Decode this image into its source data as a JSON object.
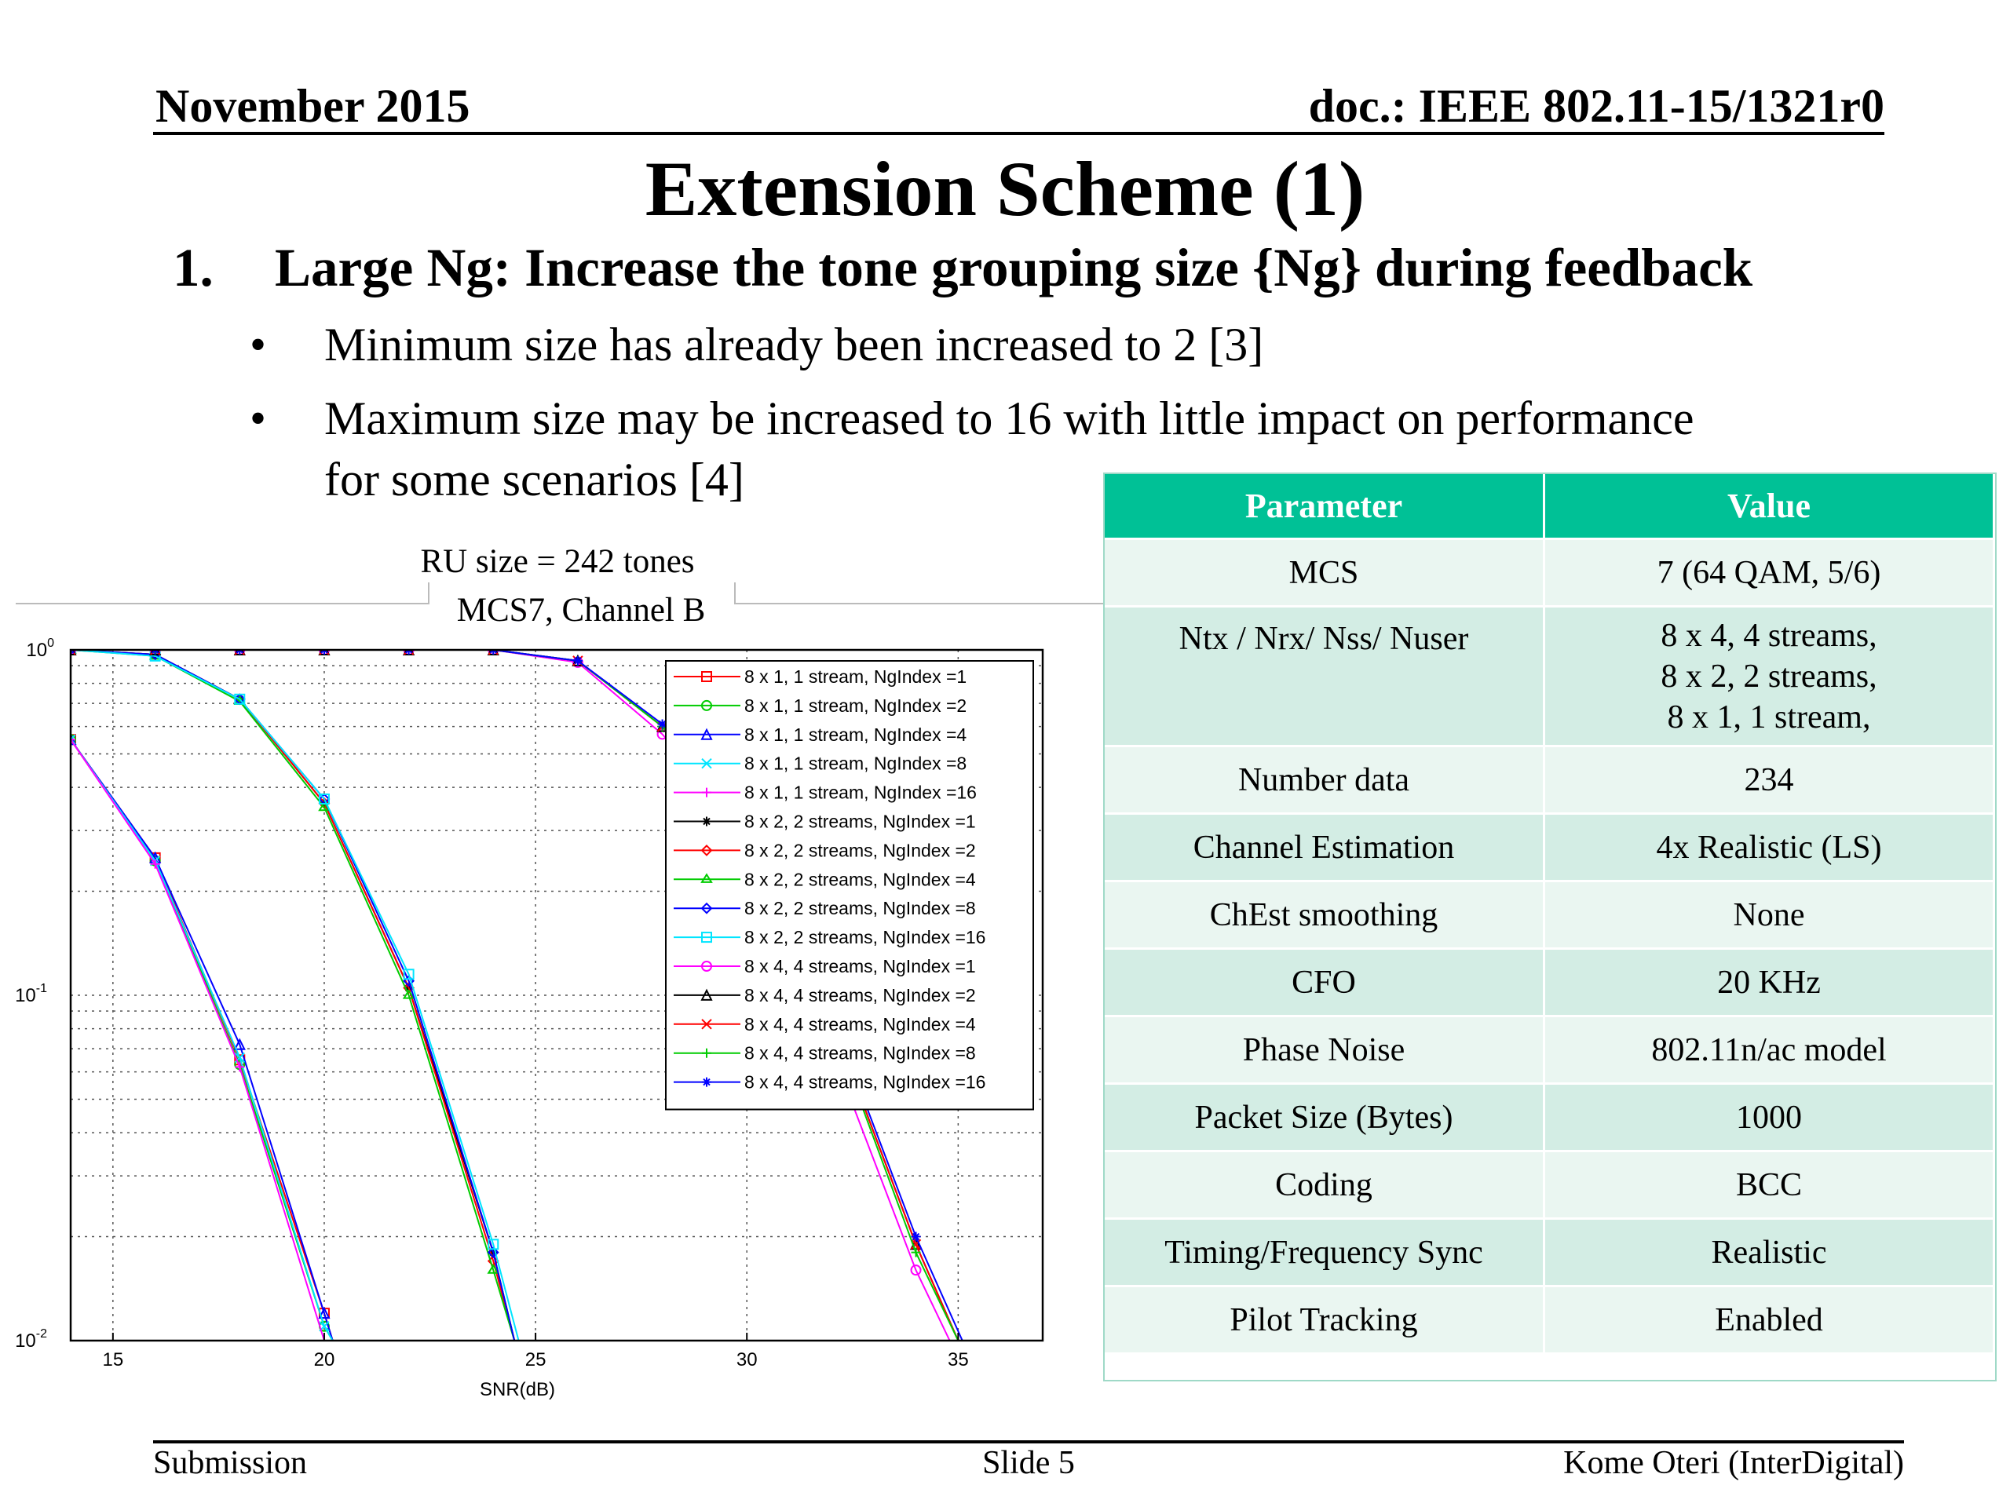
{
  "header": {
    "date": "November 2015",
    "doc": "doc.: IEEE 802.11-15/1321r0"
  },
  "title": "Extension Scheme (1)",
  "point": {
    "number": "1.",
    "text": "Large Ng: Increase the tone grouping size {Ng} during feedback"
  },
  "bullets": [
    {
      "symbol": "•",
      "line1": "Minimum size has already been increased to 2 [3]"
    },
    {
      "symbol": "•",
      "line1": "Maximum size may be increased to 16 with little impact on performance",
      "line2": "for some scenarios [4]"
    }
  ],
  "plot_caption": {
    "line1": "RU size = 242 tones",
    "line2": "MCS7, Channel B"
  },
  "table": {
    "header_color": "#00c196",
    "row_color_a": "#d3ede4",
    "row_color_b": "#eaf6f1",
    "headers": [
      "Parameter",
      "Value"
    ],
    "rows": [
      [
        "MCS",
        "7 (64 QAM, 5/6)"
      ],
      [
        "Ntx / Nrx/ Nss/  Nuser",
        "8 x 4, 4 streams,\n8 x 2, 2 streams,\n8 x 1, 1 stream,"
      ],
      [
        "Number data",
        "234"
      ],
      [
        "Channel Estimation",
        "4x Realistic  (LS)"
      ],
      [
        "ChEst smoothing",
        "None"
      ],
      [
        "CFO",
        "20 KHz"
      ],
      [
        "Phase Noise",
        "802.11n/ac  model"
      ],
      [
        "Packet Size (Bytes)",
        "1000"
      ],
      [
        "Coding",
        "BCC"
      ],
      [
        "Timing/Frequency Sync",
        "Realistic"
      ],
      [
        "Pilot Tracking",
        "Enabled"
      ]
    ]
  },
  "footer": {
    "left": "Submission",
    "center": "Slide 5",
    "right": "Kome Oteri (InterDigital)"
  },
  "chart_data": {
    "type": "line",
    "xlabel": "SNR(dB)",
    "ylabel": "",
    "xlim": [
      14,
      37
    ],
    "ylim": [
      0.01,
      1
    ],
    "yscale": "log",
    "grid": true,
    "legend_position": "top-right",
    "x_ticks": [
      15,
      20,
      25,
      30,
      35
    ],
    "y_ticks": [
      {
        "value": 1,
        "base": "10",
        "exp": "0"
      },
      {
        "value": 0.1,
        "base": "10",
        "exp": "-1"
      },
      {
        "value": 0.01,
        "base": "10",
        "exp": "-2"
      }
    ],
    "series": [
      {
        "name": "8 x 1, 1 stream, NgIndex =1",
        "color": "#ff0000",
        "marker": "square",
        "x": [
          14,
          16,
          18,
          20,
          20.2
        ],
        "y": [
          0.55,
          0.25,
          0.065,
          0.012,
          0.01
        ]
      },
      {
        "name": "8 x 1, 1 stream, NgIndex =2",
        "color": "#00cc00",
        "marker": "circle",
        "x": [
          14,
          16,
          18,
          20,
          20.2
        ],
        "y": [
          0.55,
          0.245,
          0.063,
          0.011,
          0.01
        ]
      },
      {
        "name": "8 x 1, 1 stream, NgIndex =4",
        "color": "#0000ff",
        "marker": "triangle",
        "x": [
          14,
          16,
          18,
          20,
          20.2
        ],
        "y": [
          0.55,
          0.25,
          0.072,
          0.012,
          0.01
        ]
      },
      {
        "name": "8 x 1, 1 stream, NgIndex =8",
        "color": "#00e5ff",
        "marker": "x",
        "x": [
          14,
          16,
          18,
          20,
          20.2
        ],
        "y": [
          0.55,
          0.245,
          0.066,
          0.011,
          0.01
        ]
      },
      {
        "name": "8 x 1, 1 stream, NgIndex =16",
        "color": "#ff00ff",
        "marker": "plus",
        "x": [
          14,
          16,
          18,
          20,
          20.2
        ],
        "y": [
          0.55,
          0.24,
          0.062,
          0.01,
          0.0095
        ]
      },
      {
        "name": "8 x 2, 2 streams, NgIndex =1",
        "color": "#000000",
        "marker": "star",
        "x": [
          14,
          16,
          18,
          20,
          22,
          24,
          24.5
        ],
        "y": [
          1,
          0.97,
          0.72,
          0.36,
          0.105,
          0.018,
          0.01
        ]
      },
      {
        "name": "8 x 2, 2 streams, NgIndex =2",
        "color": "#ff0000",
        "marker": "diamond",
        "x": [
          14,
          16,
          18,
          20,
          22,
          24,
          24.5
        ],
        "y": [
          1,
          0.97,
          0.72,
          0.36,
          0.105,
          0.017,
          0.01
        ]
      },
      {
        "name": "8 x 2, 2 streams, NgIndex =4",
        "color": "#00cc00",
        "marker": "hexagram",
        "x": [
          14,
          16,
          18,
          20,
          22,
          24,
          24.5
        ],
        "y": [
          1,
          0.96,
          0.71,
          0.35,
          0.1,
          0.016,
          0.01
        ]
      },
      {
        "name": "8 x 2, 2 streams, NgIndex =8",
        "color": "#0000ff",
        "marker": "diamond",
        "x": [
          14,
          16,
          18,
          20,
          22,
          24,
          24.5
        ],
        "y": [
          1,
          0.97,
          0.72,
          0.37,
          0.11,
          0.018,
          0.01
        ]
      },
      {
        "name": "8 x 2, 2 streams, NgIndex =16",
        "color": "#00e5ff",
        "marker": "square",
        "x": [
          14,
          16,
          18,
          20,
          22,
          24,
          24.6
        ],
        "y": [
          1,
          0.96,
          0.72,
          0.37,
          0.115,
          0.019,
          0.01
        ]
      },
      {
        "name": "8 x 4, 4 streams, NgIndex =1",
        "color": "#ff00ff",
        "marker": "circle",
        "x": [
          14,
          16,
          18,
          20,
          22,
          24,
          26,
          28,
          30,
          32,
          34,
          34.8
        ],
        "y": [
          1,
          1,
          1,
          1,
          1,
          1,
          0.92,
          0.57,
          0.3,
          0.07,
          0.016,
          0.01
        ]
      },
      {
        "name": "8 x 4, 4 streams, NgIndex =2",
        "color": "#000000",
        "marker": "triangle",
        "x": [
          14,
          16,
          18,
          20,
          22,
          24,
          26,
          28,
          30,
          32,
          34,
          35
        ],
        "y": [
          1,
          1,
          1,
          1,
          1,
          1,
          0.93,
          0.6,
          0.33,
          0.085,
          0.019,
          0.01
        ]
      },
      {
        "name": "8 x 4, 4 streams, NgIndex =4",
        "color": "#ff0000",
        "marker": "x",
        "x": [
          14,
          16,
          18,
          20,
          22,
          24,
          26,
          28,
          30,
          32,
          34,
          35
        ],
        "y": [
          1,
          1,
          1,
          1,
          1,
          1,
          0.93,
          0.6,
          0.33,
          0.085,
          0.019,
          0.01
        ]
      },
      {
        "name": "8 x 4, 4 streams, NgIndex =8",
        "color": "#00cc00",
        "marker": "plus",
        "x": [
          14,
          16,
          18,
          20,
          22,
          24,
          26,
          28,
          30,
          32,
          34,
          35
        ],
        "y": [
          1,
          1,
          1,
          1,
          1,
          1,
          0.93,
          0.6,
          0.32,
          0.083,
          0.018,
          0.01
        ]
      },
      {
        "name": "8 x 4, 4 streams, NgIndex =16",
        "color": "#0000ff",
        "marker": "star",
        "x": [
          14,
          16,
          18,
          20,
          22,
          24,
          26,
          28,
          30,
          32,
          34,
          35.1
        ],
        "y": [
          1,
          1,
          1,
          1,
          1,
          1,
          0.93,
          0.61,
          0.34,
          0.088,
          0.02,
          0.01
        ]
      }
    ]
  }
}
